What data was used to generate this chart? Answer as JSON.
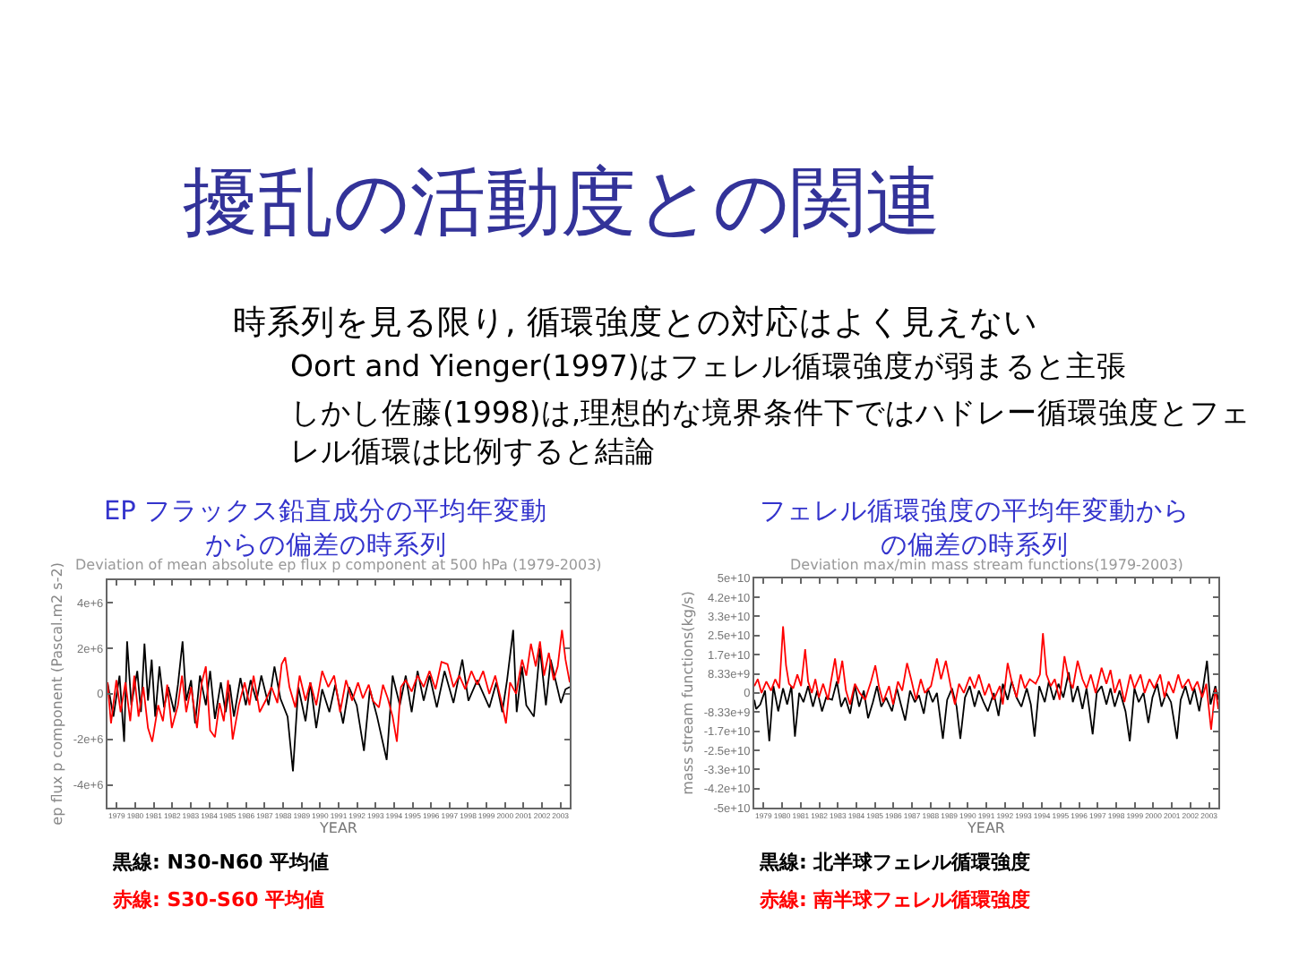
{
  "chart_data": [
    {
      "type": "other",
      "title": "擾乱の活動度との関連",
      "annotations": [
        "時系列を見る限り, 循環強度との対応はよく見えない",
        "Oort and Yienger(1997)はフェレル循環強度が弱まると主張",
        "しかし佐藤(1998)は,理想的な境界条件下ではハドレー循環強度とフェレル循環は比例すると結論"
      ]
    },
    {
      "type": "line",
      "title": "EP フラックス鉛直成分の平均年変動からの偏差の時系列",
      "subtitle": "Deviation of mean absolute ep flux p component at 500 hPa (1979-2003)",
      "xlabel": "YEAR",
      "ylabel": "ep flux p component (Pascal.m2 s-2)",
      "xlim": [
        1979,
        2004
      ],
      "xticks": [
        {
          "value": 1979.5,
          "label": "1979"
        },
        {
          "value": 1980.5,
          "label": "1980"
        },
        {
          "value": 1981.5,
          "label": "1981"
        },
        {
          "value": 1982.5,
          "label": "1982"
        },
        {
          "value": 1983.5,
          "label": "1983"
        },
        {
          "value": 1984.5,
          "label": "1984"
        },
        {
          "value": 1985.5,
          "label": "1985"
        },
        {
          "value": 1986.5,
          "label": "1986"
        },
        {
          "value": 1987.5,
          "label": "1987"
        },
        {
          "value": 1988.5,
          "label": "1988"
        },
        {
          "value": 1989.5,
          "label": "1989"
        },
        {
          "value": 1990.5,
          "label": "1990"
        },
        {
          "value": 1991.5,
          "label": "1991"
        },
        {
          "value": 1992.5,
          "label": "1992"
        },
        {
          "value": 1993.5,
          "label": "1993"
        },
        {
          "value": 1994.5,
          "label": "1994"
        },
        {
          "value": 1995.5,
          "label": "1995"
        },
        {
          "value": 1996.5,
          "label": "1996"
        },
        {
          "value": 1997.5,
          "label": "1997"
        },
        {
          "value": 1998.5,
          "label": "1998"
        },
        {
          "value": 1999.5,
          "label": "1999"
        },
        {
          "value": 2000.5,
          "label": "2000"
        },
        {
          "value": 2001.5,
          "label": "2001"
        },
        {
          "value": 2002.5,
          "label": "2002"
        },
        {
          "value": 2003.5,
          "label": "2003"
        }
      ],
      "ylim": [
        -5000000.0,
        5000000.0
      ],
      "yticks": [
        {
          "value": -4000000.0,
          "label": "-4e+6"
        },
        {
          "value": -2000000.0,
          "label": "-2e+6"
        },
        0,
        {
          "value": 2000000.0,
          "label": "2e+6"
        },
        {
          "value": 4000000.0,
          "label": "4e+6"
        }
      ],
      "series": [
        {
          "name": "黒線: N30-N60 平均値",
          "color": "#000000",
          "x": [
            1979.0,
            1979.32,
            1979.65,
            1979.9,
            1980.06,
            1980.29,
            1980.61,
            1980.81,
            1981.0,
            1981.19,
            1981.39,
            1981.58,
            1981.81,
            1982.06,
            1982.29,
            1982.61,
            1982.81,
            1983.06,
            1983.26,
            1983.52,
            1983.74,
            1984.0,
            1984.32,
            1984.55,
            1984.81,
            1985.13,
            1985.39,
            1985.61,
            1985.84,
            1986.19,
            1986.48,
            1986.74,
            1987.06,
            1987.32,
            1987.71,
            1988.03,
            1988.35,
            1988.74,
            1989.03,
            1989.32,
            1989.71,
            1989.97,
            1990.29,
            1990.61,
            1991.0,
            1991.32,
            1991.74,
            1992.06,
            1992.48,
            1992.87,
            1993.19,
            1993.58,
            1994.1,
            1994.42,
            1994.81,
            1995.13,
            1995.45,
            1995.77,
            1996.1,
            1996.42,
            1996.81,
            1997.23,
            1997.71,
            1998.19,
            1998.52,
            1999.0,
            1999.65,
            2000.03,
            2000.35,
            2000.61,
            2000.94,
            2001.13,
            2001.42,
            2001.65,
            2002.06,
            2002.39,
            2002.71,
            2002.97,
            2003.26,
            2003.52,
            2003.77,
            2004.0
          ],
          "values": [
            500000.0,
            -1000000.0,
            800000.0,
            -2100000.0,
            2300000.0,
            -500000.0,
            1000000.0,
            -800000.0,
            2200000.0,
            -300000.0,
            1500000.0,
            -1000000.0,
            1200000.0,
            -600000.0,
            300000.0,
            -800000.0,
            400000.0,
            2300000.0,
            -300000.0,
            600000.0,
            -1300000.0,
            800000.0,
            -500000.0,
            1000000.0,
            -1100000.0,
            500000.0,
            -800000.0,
            400000.0,
            -1000000.0,
            700000.0,
            -500000.0,
            600000.0,
            -300000.0,
            800000.0,
            -500000.0,
            1200000.0,
            -200000.0,
            -1000000.0,
            -3400000.0,
            300000.0,
            -1200000.0,
            500000.0,
            -1500000.0,
            200000.0,
            -800000.0,
            400000.0,
            -1300000.0,
            300000.0,
            -500000.0,
            -2500000.0,
            200000.0,
            -1000000.0,
            -2900000.0,
            800000.0,
            -500000.0,
            800000.0,
            -800000.0,
            1000000.0,
            -300000.0,
            800000.0,
            -600000.0,
            1000000.0,
            -400000.0,
            1500000.0,
            -300000.0,
            600000.0,
            -600000.0,
            500000.0,
            -800000.0,
            600000.0,
            2800000.0,
            -800000.0,
            1200000.0,
            -500000.0,
            -1000000.0,
            2000000.0,
            -500000.0,
            1500000.0,
            500000.0,
            -400000.0,
            200000.0,
            300000.0
          ]
        },
        {
          "name": "赤線: S30-S60 平均値",
          "color": "#ff0000",
          "x": [
            1979.0,
            1979.19,
            1979.48,
            1979.71,
            1979.97,
            1980.23,
            1980.45,
            1980.68,
            1980.94,
            1981.19,
            1981.42,
            1981.74,
            1982.0,
            1982.23,
            1982.48,
            1982.81,
            1983.03,
            1983.26,
            1983.52,
            1983.84,
            1984.1,
            1984.32,
            1984.55,
            1984.81,
            1985.06,
            1985.29,
            1985.52,
            1985.77,
            1986.1,
            1986.42,
            1986.68,
            1986.9,
            1987.23,
            1987.55,
            1987.87,
            1988.19,
            1988.42,
            1988.61,
            1988.84,
            1989.16,
            1989.39,
            1989.71,
            1989.97,
            1990.29,
            1990.61,
            1990.94,
            1991.26,
            1991.58,
            1991.9,
            1992.23,
            1992.55,
            1992.81,
            1993.13,
            1993.35,
            1993.68,
            1993.9,
            1994.16,
            1994.42,
            1994.65,
            1994.87,
            1995.13,
            1995.45,
            1995.77,
            1996.1,
            1996.42,
            1996.74,
            1997.06,
            1997.39,
            1997.71,
            1998.03,
            1998.35,
            1998.68,
            1999.0,
            1999.32,
            1999.65,
            1999.97,
            2000.29,
            2000.55,
            2000.77,
            2001.1,
            2001.42,
            2001.65,
            2001.9,
            2002.16,
            2002.39,
            2002.61,
            2002.87,
            2003.13,
            2003.35,
            2003.58,
            2003.77,
            2004.0
          ],
          "values": [
            500000.0,
            -1300000.0,
            600000.0,
            -800000.0,
            500000.0,
            -1200000.0,
            800000.0,
            -1000000.0,
            300000.0,
            -1500000.0,
            -2100000.0,
            -500000.0,
            -1200000.0,
            400000.0,
            -1500000.0,
            -500000.0,
            800000.0,
            -800000.0,
            300000.0,
            -1500000.0,
            500000.0,
            1200000.0,
            -1600000.0,
            -1900000.0,
            -400000.0,
            -1200000.0,
            600000.0,
            -2000000.0,
            -500000.0,
            500000.0,
            -500000.0,
            800000.0,
            -800000.0,
            -300000.0,
            300000.0,
            -400000.0,
            1300000.0,
            1600000.0,
            300000.0,
            -600000.0,
            800000.0,
            -300000.0,
            500000.0,
            -500000.0,
            1000000.0,
            300000.0,
            800000.0,
            -800000.0,
            600000.0,
            -300000.0,
            500000.0,
            -200000.0,
            400000.0,
            -300000.0,
            -600000.0,
            400000.0,
            -200000.0,
            -1000000.0,
            -2100000.0,
            300000.0,
            600000.0,
            100000.0,
            800000.0,
            300000.0,
            1000000.0,
            200000.0,
            1400000.0,
            1300000.0,
            300000.0,
            800000.0,
            200000.0,
            1000000.0,
            400000.0,
            1000000.0,
            0,
            800000.0,
            -300000.0,
            -1300000.0,
            500000.0,
            0,
            1500000.0,
            800000.0,
            2200000.0,
            1200000.0,
            2300000.0,
            800000.0,
            1800000.0,
            600000.0,
            1200000.0,
            2800000.0,
            1500000.0,
            500000.0
          ]
        }
      ]
    },
    {
      "type": "line",
      "title": "フェレル循環強度の平均年変動からの偏差の時系列",
      "subtitle": "Deviation max/min mass stream functions(1979-2003)",
      "xlabel": "YEAR",
      "ylabel": "mass stream functions(kg/s)",
      "xlim": [
        1979,
        2004
      ],
      "xticks": [
        {
          "value": 1979.5,
          "label": "1979"
        },
        {
          "value": 1980.5,
          "label": "1980"
        },
        {
          "value": 1981.5,
          "label": "1981"
        },
        {
          "value": 1982.5,
          "label": "1982"
        },
        {
          "value": 1983.5,
          "label": "1983"
        },
        {
          "value": 1984.5,
          "label": "1984"
        },
        {
          "value": 1985.5,
          "label": "1985"
        },
        {
          "value": 1986.5,
          "label": "1986"
        },
        {
          "value": 1987.5,
          "label": "1987"
        },
        {
          "value": 1988.5,
          "label": "1988"
        },
        {
          "value": 1989.5,
          "label": "1989"
        },
        {
          "value": 1990.5,
          "label": "1990"
        },
        {
          "value": 1991.5,
          "label": "1991"
        },
        {
          "value": 1992.5,
          "label": "1992"
        },
        {
          "value": 1993.5,
          "label": "1993"
        },
        {
          "value": 1994.5,
          "label": "1994"
        },
        {
          "value": 1995.5,
          "label": "1995"
        },
        {
          "value": 1996.5,
          "label": "1996"
        },
        {
          "value": 1997.5,
          "label": "1997"
        },
        {
          "value": 1998.5,
          "label": "1998"
        },
        {
          "value": 1999.5,
          "label": "1999"
        },
        {
          "value": 2000.5,
          "label": "2000"
        },
        {
          "value": 2001.5,
          "label": "2001"
        },
        {
          "value": 2002.5,
          "label": "2002"
        },
        {
          "value": 2003.5,
          "label": "2003"
        }
      ],
      "ylim": [
        -50000000000.0,
        50000000000.0
      ],
      "yticks": [
        {
          "value": -50000000000.0,
          "label": "-5e+10"
        },
        {
          "value": -41670000000.0,
          "label": "-4.2e+10"
        },
        {
          "value": -33330000000.0,
          "label": "-3.3e+10"
        },
        {
          "value": -25000000000.0,
          "label": "-2.5e+10"
        },
        {
          "value": -16670000000.0,
          "label": "-1.7e+10"
        },
        {
          "value": -8330000000.0,
          "label": "-8.33e+9"
        },
        0,
        {
          "value": 8330000000.0,
          "label": "8.33e+9"
        },
        {
          "value": 16670000000.0,
          "label": "1.7e+10"
        },
        {
          "value": 25000000000.0,
          "label": "2.5e+10"
        },
        {
          "value": 33330000000.0,
          "label": "3.3e+10"
        },
        {
          "value": 41670000000.0,
          "label": "4.2e+10"
        },
        {
          "value": 50000000000.0,
          "label": "5e+10"
        }
      ],
      "series": [
        {
          "name": "黒線: 北半球フェレル循環強度",
          "color": "#000000",
          "x": [
            1979.0,
            1979.1,
            1979.32,
            1979.58,
            1979.81,
            1980.03,
            1980.29,
            1980.55,
            1980.77,
            1981.0,
            1981.19,
            1981.42,
            1981.65,
            1981.9,
            1982.16,
            1982.39,
            1982.65,
            1982.87,
            1983.19,
            1983.45,
            1983.68,
            1983.9,
            1984.16,
            1984.42,
            1984.65,
            1984.9,
            1985.13,
            1985.39,
            1985.61,
            1985.84,
            1986.1,
            1986.42,
            1986.68,
            1986.9,
            1987.13,
            1987.39,
            1987.65,
            1987.87,
            1988.13,
            1988.35,
            1988.61,
            1988.84,
            1989.16,
            1989.39,
            1989.65,
            1989.9,
            1990.1,
            1990.35,
            1990.61,
            1990.87,
            1991.1,
            1991.35,
            1991.58,
            1991.9,
            1992.16,
            1992.39,
            1992.65,
            1992.87,
            1993.13,
            1993.39,
            1993.68,
            1993.9,
            1994.1,
            1994.35,
            1994.65,
            1994.87,
            1995.13,
            1995.39,
            1995.65,
            1995.94,
            1996.16,
            1996.42,
            1996.68,
            1996.9,
            1997.23,
            1997.45,
            1997.71,
            1997.97,
            1998.19,
            1998.42,
            1998.68,
            1999.0,
            1999.23,
            1999.48,
            1999.71,
            1999.97,
            2000.23,
            2000.45,
            2000.71,
            2000.94,
            2001.19,
            2001.45,
            2001.77,
            2001.97,
            2002.23,
            2002.48,
            2002.71,
            2002.97,
            2003.19,
            2003.39,
            2003.58,
            2003.84,
            2004.0
          ],
          "values": [
            -3000000000.0,
            -7000000000.0,
            -5000000000.0,
            1000000000.0,
            -21000000000.0,
            3000000000.0,
            -8000000000.0,
            2000000000.0,
            -5000000000.0,
            3000000000.0,
            -19000000000.0,
            0,
            -4000000000.0,
            3000000000.0,
            -6000000000.0,
            1000000000.0,
            -8000000000.0,
            -2000000000.0,
            -3000000000.0,
            5000000000.0,
            -6000000000.0,
            -2000000000.0,
            -9000000000.0,
            3000000000.0,
            -6000000000.0,
            1000000000.0,
            -11000000000.0,
            -4000000000.0,
            3000000000.0,
            -6000000000.0,
            -2000000000.0,
            -8000000000.0,
            2000000000.0,
            -5000000000.0,
            -12000000000.0,
            1000000000.0,
            -4000000000.0,
            -1000000000.0,
            -9000000000.0,
            2000000000.0,
            -4000000000.0,
            0,
            -20000000000.0,
            -3000000000.0,
            2000000000.0,
            -6000000000.0,
            -20000000000.0,
            -2000000000.0,
            3000000000.0,
            -6000000000.0,
            1000000000.0,
            -4000000000.0,
            -8000000000.0,
            0,
            -10000000000.0,
            4000000000.0,
            -3000000000.0,
            5000000000.0,
            -2000000000.0,
            -6000000000.0,
            2000000000.0,
            -5000000000.0,
            -19000000000.0,
            3000000000.0,
            -4000000000.0,
            5000000000.0,
            -3000000000.0,
            4000000000.0,
            -2000000000.0,
            9000000000.0,
            -4000000000.0,
            3000000000.0,
            -7000000000.0,
            2000000000.0,
            -18000000000.0,
            0,
            3000000000.0,
            -5000000000.0,
            2000000000.0,
            -6000000000.0,
            1000000000.0,
            -8000000000.0,
            -21000000000.0,
            2000000000.0,
            -4000000000.0,
            0,
            -13000000000.0,
            -2000000000.0,
            4000000000.0,
            -6000000000.0,
            0,
            -4000000000.0,
            -20000000000.0,
            -3000000000.0,
            3000000000.0,
            -5000000000.0,
            2000000000.0,
            -8000000000.0,
            3000000000.0,
            14000000000.0,
            -5000000000.0,
            3000000000.0,
            -3000000000.0
          ]
        },
        {
          "name": "赤線: 南半球フェレル循環強度",
          "color": "#ff0000",
          "x": [
            1979.0,
            1979.19,
            1979.39,
            1979.65,
            1979.9,
            1980.13,
            1980.35,
            1980.55,
            1980.71,
            1980.87,
            1981.1,
            1981.32,
            1981.52,
            1981.74,
            1981.9,
            1982.1,
            1982.29,
            1982.48,
            1982.71,
            1982.97,
            1983.13,
            1983.35,
            1983.52,
            1983.74,
            1983.94,
            1984.16,
            1984.42,
            1984.68,
            1984.97,
            1985.29,
            1985.52,
            1985.71,
            1985.94,
            1986.26,
            1986.48,
            1986.74,
            1986.97,
            1987.23,
            1987.45,
            1987.71,
            1987.97,
            1988.19,
            1988.52,
            1988.84,
            1989.06,
            1989.32,
            1989.58,
            1989.81,
            1990.03,
            1990.29,
            1990.61,
            1990.87,
            1991.1,
            1991.42,
            1991.65,
            1991.9,
            1992.23,
            1992.39,
            1992.65,
            1992.87,
            1993.13,
            1993.35,
            1993.58,
            1993.84,
            1994.16,
            1994.39,
            1994.55,
            1994.74,
            1994.97,
            1995.19,
            1995.45,
            1995.71,
            1995.94,
            1996.16,
            1996.42,
            1996.68,
            1996.9,
            1997.13,
            1997.39,
            1997.71,
            1997.97,
            1998.19,
            1998.42,
            1998.68,
            1998.94,
            1999.26,
            1999.48,
            1999.81,
            2000.03,
            2000.29,
            2000.55,
            2000.87,
            2001.1,
            2001.32,
            2001.58,
            2001.84,
            2002.06,
            2002.39,
            2002.61,
            2002.87,
            2003.13,
            2003.35,
            2003.61,
            2003.84,
            2004.0
          ],
          "values": [
            3000000000.0,
            6000000000.0,
            0,
            5000000000.0,
            1000000000.0,
            6000000000.0,
            2000000000.0,
            29000000000.0,
            12000000000.0,
            4000000000.0,
            2000000000.0,
            8000000000.0,
            3000000000.0,
            19000000000.0,
            5000000000.0,
            0,
            6000000000.0,
            -2000000000.0,
            4000000000.0,
            -3000000000.0,
            5000000000.0,
            15000000000.0,
            4000000000.0,
            14000000000.0,
            1000000000.0,
            -5000000000.0,
            4000000000.0,
            0,
            -3000000000.0,
            5000000000.0,
            12000000000.0,
            3000000000.0,
            -4000000000.0,
            3000000000.0,
            -5000000000.0,
            5000000000.0,
            1000000000.0,
            13000000000.0,
            6000000000.0,
            -3000000000.0,
            6000000000.0,
            0,
            3000000000.0,
            15000000000.0,
            6000000000.0,
            14000000000.0,
            3000000000.0,
            -5000000000.0,
            4000000000.0,
            0,
            7000000000.0,
            2000000000.0,
            8000000000.0,
            -1000000000.0,
            4000000000.0,
            -3000000000.0,
            3000000000.0,
            -5000000000.0,
            13000000000.0,
            5000000000.0,
            -2000000000.0,
            8000000000.0,
            2000000000.0,
            6000000000.0,
            4000000000.0,
            8000000000.0,
            26000000000.0,
            8000000000.0,
            3000000000.0,
            6000000000.0,
            -3000000000.0,
            16000000000.0,
            6000000000.0,
            2000000000.0,
            14000000000.0,
            6000000000.0,
            2000000000.0,
            8000000000.0,
            0,
            11000000000.0,
            4000000000.0,
            10000000000.0,
            0,
            6000000000.0,
            -4000000000.0,
            8000000000.0,
            2000000000.0,
            8000000000.0,
            0,
            6000000000.0,
            2000000000.0,
            8000000000.0,
            -2000000000.0,
            5000000000.0,
            0,
            8000000000.0,
            2000000000.0,
            6000000000.0,
            1000000000.0,
            5000000000.0,
            -2000000000.0,
            4000000000.0,
            -16000000000.0,
            2000000000.0,
            -7000000000.0
          ]
        }
      ]
    }
  ]
}
